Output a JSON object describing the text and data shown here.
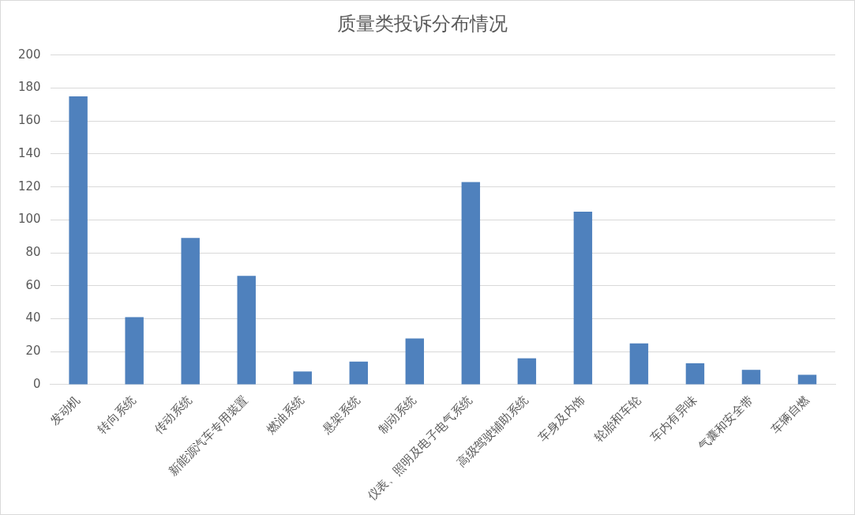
{
  "chart_data": {
    "type": "bar",
    "title": "质量类投诉分布情况",
    "categories": [
      "发动机",
      "转向系统",
      "传动系统",
      "新能源汽车专用装置",
      "燃油系统",
      "悬架系统",
      "制动系统",
      "仪表、照明及电子电气系统",
      "高级驾驶辅助系统",
      "车身及内饰",
      "轮胎和车轮",
      "车内有异味",
      "气囊和安全带",
      "车辆自燃"
    ],
    "values": [
      175,
      41,
      89,
      66,
      8,
      14,
      28,
      123,
      16,
      105,
      25,
      13,
      9,
      6
    ],
    "color": "#4f81bd",
    "ylim": [
      0,
      200
    ],
    "yticks": [
      0,
      20,
      40,
      60,
      80,
      100,
      120,
      140,
      160,
      180,
      200
    ],
    "grid": "y",
    "legend": false
  }
}
